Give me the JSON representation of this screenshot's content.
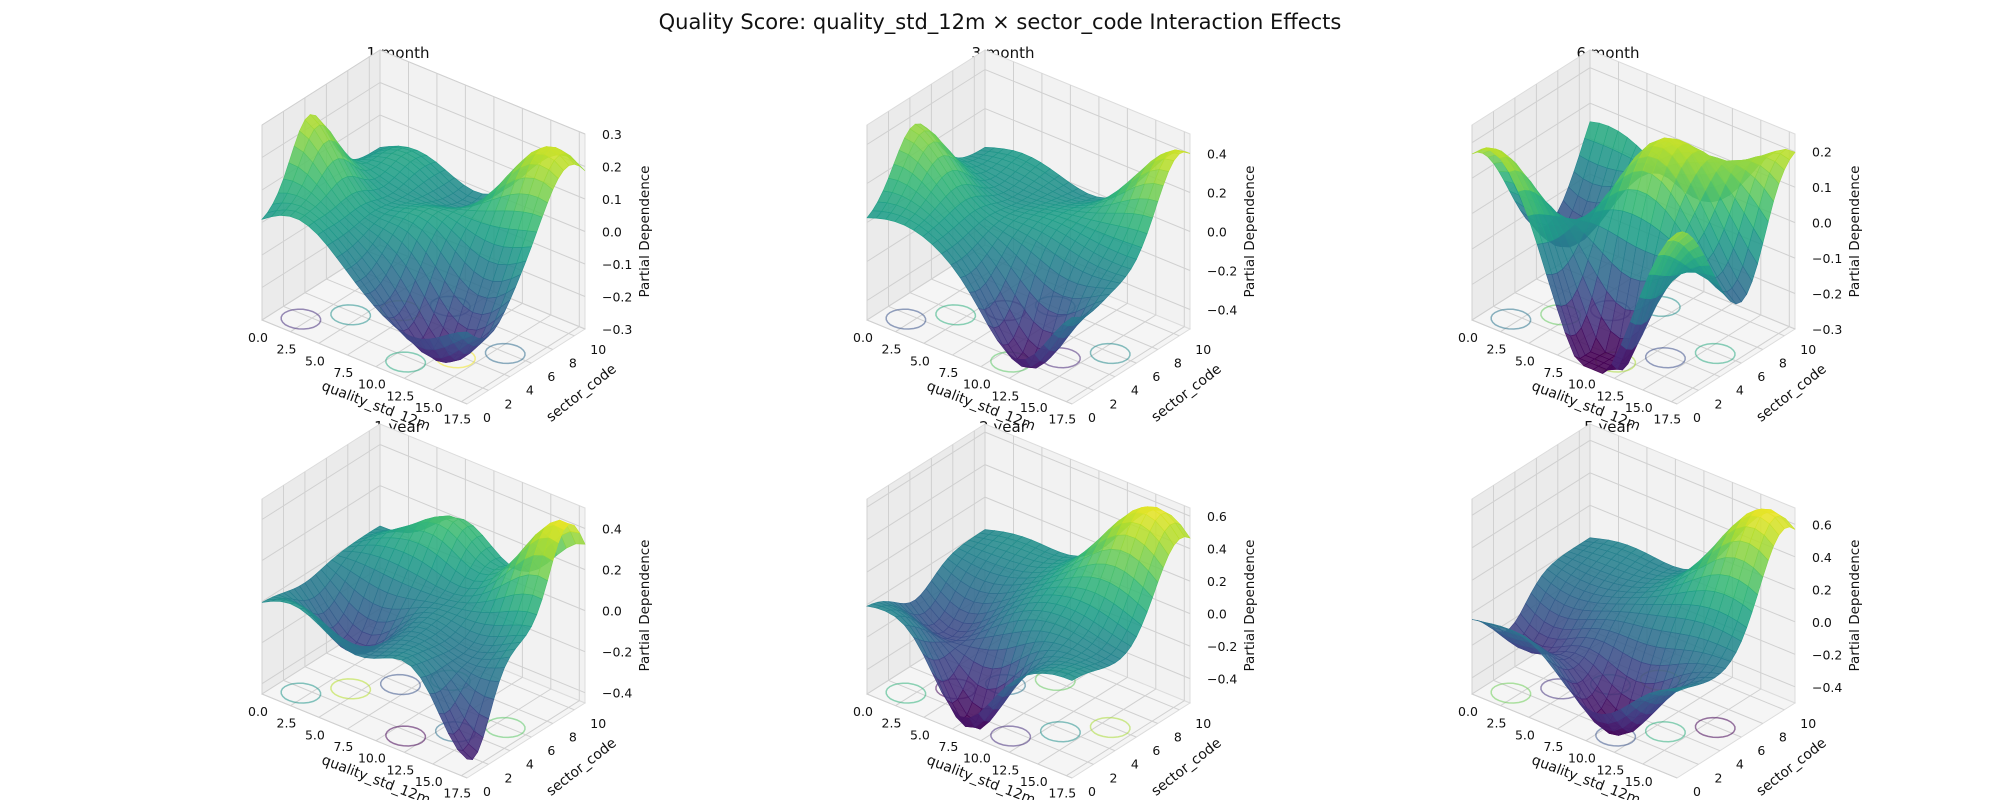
{
  "title": "Quality Score: quality_std_12m × sector_code Interaction Effects",
  "chart_data": [
    {
      "type": "surface",
      "title": "1 month",
      "xlabel": "quality_std_12m",
      "ylabel": "sector_code",
      "zlabel": "Partial Dependence",
      "xticks": [
        "0.0",
        "2.5",
        "5.0",
        "7.5",
        "10.0",
        "12.5",
        "15.0",
        "17.5"
      ],
      "yticks": [
        "0",
        "2",
        "4",
        "6",
        "8",
        "10"
      ],
      "zticks": [
        "−0.3",
        "−0.2",
        "−0.1",
        "0.0",
        "0.1",
        "0.2",
        "0.3"
      ],
      "zlim": [
        -0.3,
        0.3
      ],
      "colormap": "viridis",
      "seed": 1
    },
    {
      "type": "surface",
      "title": "3 month",
      "xlabel": "quality_std_12m",
      "ylabel": "sector_code",
      "zlabel": "Partial Dependence",
      "xticks": [
        "0.0",
        "2.5",
        "5.0",
        "7.5",
        "10.0",
        "12.5",
        "15.0",
        "17.5"
      ],
      "yticks": [
        "0",
        "2",
        "4",
        "6",
        "8",
        "10"
      ],
      "zticks": [
        "−0.4",
        "−0.2",
        "0.0",
        "0.2",
        "0.4"
      ],
      "zlim": [
        -0.5,
        0.5
      ],
      "colormap": "viridis",
      "seed": 2
    },
    {
      "type": "surface",
      "title": "6 month",
      "xlabel": "quality_std_12m",
      "ylabel": "sector_code",
      "zlabel": "Partial Dependence",
      "xticks": [
        "0.0",
        "2.5",
        "5.0",
        "7.5",
        "10.0",
        "12.5",
        "15.0",
        "17.5"
      ],
      "yticks": [
        "0",
        "2",
        "4",
        "6",
        "8",
        "10"
      ],
      "zticks": [
        "−0.3",
        "−0.2",
        "−0.1",
        "0.0",
        "0.1",
        "0.2"
      ],
      "zlim": [
        -0.3,
        0.25
      ],
      "colormap": "viridis",
      "seed": 3
    },
    {
      "type": "surface",
      "title": "1 year",
      "xlabel": "quality_std_12m",
      "ylabel": "sector_code",
      "zlabel": "Partial Dependence",
      "xticks": [
        "0.0",
        "2.5",
        "5.0",
        "7.5",
        "10.0",
        "12.5",
        "15.0",
        "17.5"
      ],
      "yticks": [
        "0",
        "2",
        "4",
        "6",
        "8",
        "10"
      ],
      "zticks": [
        "−0.4",
        "−0.2",
        "0.0",
        "0.2",
        "0.4"
      ],
      "zlim": [
        -0.45,
        0.5
      ],
      "colormap": "viridis",
      "seed": 4
    },
    {
      "type": "surface",
      "title": "2 year",
      "xlabel": "quality_std_12m",
      "ylabel": "sector_code",
      "zlabel": "Partial Dependence",
      "xticks": [
        "0.0",
        "2.5",
        "5.0",
        "7.5",
        "10.0",
        "12.5",
        "15.0",
        "17.5"
      ],
      "yticks": [
        "0",
        "2",
        "4",
        "6",
        "8",
        "10"
      ],
      "zticks": [
        "−0.4",
        "−0.2",
        "0.0",
        "0.2",
        "0.4",
        "0.6"
      ],
      "zlim": [
        -0.55,
        0.65
      ],
      "colormap": "viridis",
      "seed": 5
    },
    {
      "type": "surface",
      "title": "5 year",
      "xlabel": "quality_std_12m",
      "ylabel": "sector_code",
      "zlabel": "Partial Dependence",
      "xticks": [
        "0.0",
        "2.5",
        "5.0",
        "7.5",
        "10.0",
        "12.5",
        "15.0"
      ],
      "yticks": [
        "0",
        "2",
        "4",
        "6",
        "8",
        "10"
      ],
      "zticks": [
        "−0.4",
        "−0.2",
        "0.0",
        "0.2",
        "0.4",
        "0.6"
      ],
      "zlim": [
        -0.5,
        0.7
      ],
      "colormap": "viridis",
      "seed": 6
    }
  ]
}
